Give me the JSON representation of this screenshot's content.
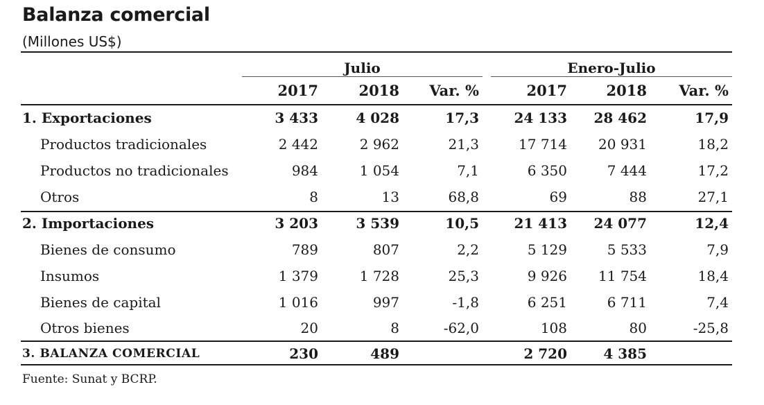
{
  "title": "Balanza comercial",
  "subtitle": "(Millones US$)",
  "groups": {
    "julio": "Julio",
    "enero_julio": "Enero-Julio"
  },
  "columns": [
    "2017",
    "2018",
    "Var. %",
    "2017",
    "2018",
    "Var. %"
  ],
  "rows": [
    {
      "label": "1. Exportaciones",
      "values": [
        "3 433",
        "4 028",
        "17,3",
        "24 133",
        "28 462",
        "17,9"
      ]
    },
    {
      "label": "Productos tradicionales",
      "values": [
        "2 442",
        "2 962",
        "21,3",
        "17 714",
        "20 931",
        "18,2"
      ]
    },
    {
      "label": "Productos no tradicionales",
      "values": [
        "984",
        "1 054",
        "7,1",
        "6 350",
        "7 444",
        "17,2"
      ]
    },
    {
      "label": "Otros",
      "values": [
        "8",
        "13",
        "68,8",
        "69",
        "88",
        "27,1"
      ]
    },
    {
      "label": "2. Importaciones",
      "values": [
        "3 203",
        "3 539",
        "10,5",
        "21 413",
        "24 077",
        "12,4"
      ]
    },
    {
      "label": "Bienes de consumo",
      "values": [
        "789",
        "807",
        "2,2",
        "5 129",
        "5 533",
        "7,9"
      ]
    },
    {
      "label": "Insumos",
      "values": [
        "1 379",
        "1 728",
        "25,3",
        "9 926",
        "11 754",
        "18,4"
      ]
    },
    {
      "label": "Bienes de capital",
      "values": [
        "1 016",
        "997",
        "-1,8",
        "6 251",
        "6 711",
        "7,4"
      ]
    },
    {
      "label": "Otros bienes",
      "values": [
        "20",
        "8",
        "-62,0",
        "108",
        "80",
        "-25,8"
      ]
    },
    {
      "label": "3. BALANZA COMERCIAL",
      "values": [
        "230",
        "489",
        "",
        "2 720",
        "4 385",
        ""
      ]
    }
  ],
  "source": "Fuente: Sunat y BCRP."
}
